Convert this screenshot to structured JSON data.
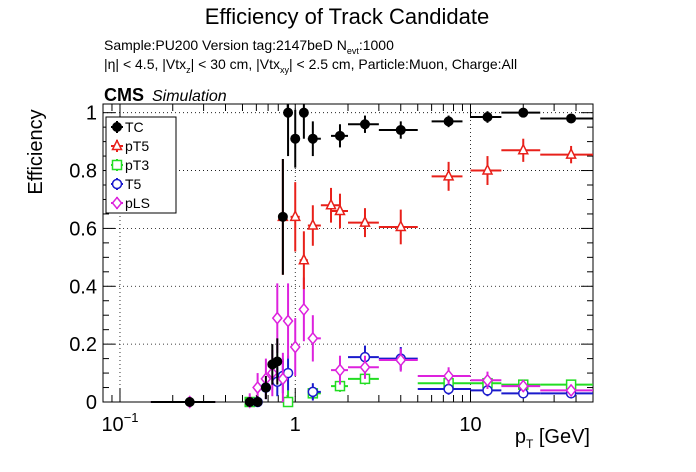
{
  "chart_data": {
    "type": "scatter",
    "title": "Efficiency of Track Candidate",
    "subtitle_sample": "Sample:PU200   Version tag:2147beD  N",
    "subtitle_nevt_sub": "evt",
    "subtitle_nevt_val": ":1000",
    "cuts_p1": "|η| < 4.5, |Vtx",
    "cuts_z": "z",
    "cuts_p2": "| < 30 cm, |Vtx",
    "cuts_xy": "xy",
    "cuts_p3": "| < 2.5 cm, Particle:Muon, Charge:All",
    "cms_label": "CMS",
    "simulation_label": "Simulation",
    "ylabel": "Efficiency",
    "xlabel_p": "p",
    "xlabel_sub": "T",
    "xlabel_unit": " [GeV]",
    "x_scale": "log",
    "xlim": [
      0.08,
      50
    ],
    "ylim": [
      0,
      1.03
    ],
    "grid": true,
    "legend_position": "top-left",
    "x_ticks": [
      {
        "value": 0.1,
        "base": "10",
        "exp": "−1"
      },
      {
        "value": 1,
        "label": "1"
      },
      {
        "value": 10,
        "label": "10"
      }
    ],
    "y_ticks": [
      {
        "value": 0,
        "label": "0"
      },
      {
        "value": 0.2,
        "label": "0.2"
      },
      {
        "value": 0.4,
        "label": "0.4"
      },
      {
        "value": 0.6,
        "label": "0.6"
      },
      {
        "value": 0.8,
        "label": "0.8"
      },
      {
        "value": 1,
        "label": "1"
      }
    ],
    "series": [
      {
        "name": "TC",
        "color": "#000000",
        "marker": "filled-circle",
        "points": [
          {
            "x": 0.25,
            "xlo": 0.15,
            "xhi": 0.35,
            "y": 0,
            "ey": 0
          },
          {
            "x": 0.55,
            "xlo": 0.52,
            "xhi": 0.58,
            "y": 0,
            "ey": 0
          },
          {
            "x": 0.61,
            "xlo": 0.58,
            "xhi": 0.65,
            "y": 0,
            "ey": 0.02
          },
          {
            "x": 0.68,
            "xlo": 0.65,
            "xhi": 0.72,
            "y": 0.05,
            "ey": 0.04
          },
          {
            "x": 0.74,
            "xlo": 0.72,
            "xhi": 0.77,
            "y": 0.13,
            "ey": 0.07
          },
          {
            "x": 0.79,
            "xlo": 0.77,
            "xhi": 0.82,
            "y": 0.14,
            "ey": 0.08
          },
          {
            "x": 0.85,
            "xlo": 0.82,
            "xhi": 0.88,
            "y": 0.64,
            "ey": 0.2
          },
          {
            "x": 0.91,
            "xlo": 0.88,
            "xhi": 0.94,
            "y": 1.0,
            "ey": 0.15
          },
          {
            "x": 1.0,
            "xlo": 0.94,
            "xhi": 1.06,
            "y": 0.91,
            "ey": 0.1
          },
          {
            "x": 1.12,
            "xlo": 1.06,
            "xhi": 1.18,
            "y": 1.0,
            "ey": 0.09
          },
          {
            "x": 1.26,
            "xlo": 1.18,
            "xhi": 1.4,
            "y": 0.91,
            "ey": 0.06
          },
          {
            "x": 1.8,
            "xlo": 1.6,
            "xhi": 2.0,
            "y": 0.92,
            "ey": 0.04
          },
          {
            "x": 2.5,
            "xlo": 2.0,
            "xhi": 3.0,
            "y": 0.96,
            "ey": 0.03
          },
          {
            "x": 4.0,
            "xlo": 3.0,
            "xhi": 5.0,
            "y": 0.94,
            "ey": 0.03
          },
          {
            "x": 7.5,
            "xlo": 6.0,
            "xhi": 9.0,
            "y": 0.97,
            "ey": 0.02
          },
          {
            "x": 12.5,
            "xlo": 10.0,
            "xhi": 15.0,
            "y": 0.985,
            "ey": 0.02
          },
          {
            "x": 20.0,
            "xlo": 15.0,
            "xhi": 25.0,
            "y": 1.0,
            "ey": 0.01
          },
          {
            "x": 37.5,
            "xlo": 25.0,
            "xhi": 50.0,
            "y": 0.98,
            "ey": 0.01
          }
        ]
      },
      {
        "name": "pT5",
        "color": "#e8201a",
        "marker": "open-triangle",
        "points": [
          {
            "x": 0.85,
            "xlo": 0.82,
            "xhi": 0.88,
            "y": 0.64,
            "ey": 0.2
          },
          {
            "x": 1.0,
            "xlo": 0.94,
            "xhi": 1.06,
            "y": 0.64,
            "ey": 0.12
          },
          {
            "x": 1.12,
            "xlo": 1.06,
            "xhi": 1.18,
            "y": 0.49,
            "ey": 0.1
          },
          {
            "x": 1.26,
            "xlo": 1.18,
            "xhi": 1.4,
            "y": 0.61,
            "ey": 0.07
          },
          {
            "x": 1.6,
            "xlo": 1.4,
            "xhi": 1.8,
            "y": 0.68,
            "ey": 0.06
          },
          {
            "x": 1.8,
            "xlo": 1.6,
            "xhi": 2.0,
            "y": 0.66,
            "ey": 0.06
          },
          {
            "x": 2.5,
            "xlo": 2.0,
            "xhi": 3.0,
            "y": 0.62,
            "ey": 0.05
          },
          {
            "x": 4.0,
            "xlo": 3.0,
            "xhi": 5.0,
            "y": 0.605,
            "ey": 0.06
          },
          {
            "x": 7.5,
            "xlo": 6.0,
            "xhi": 9.0,
            "y": 0.78,
            "ey": 0.05
          },
          {
            "x": 12.5,
            "xlo": 10.0,
            "xhi": 15.0,
            "y": 0.8,
            "ey": 0.05
          },
          {
            "x": 20.0,
            "xlo": 15.0,
            "xhi": 25.0,
            "y": 0.87,
            "ey": 0.04
          },
          {
            "x": 37.5,
            "xlo": 25.0,
            "xhi": 50.0,
            "y": 0.855,
            "ey": 0.03
          }
        ]
      },
      {
        "name": "pT3",
        "color": "#22dd22",
        "marker": "open-square",
        "points": [
          {
            "x": 0.55,
            "xlo": 0.52,
            "xhi": 0.58,
            "y": 0,
            "ey": 0
          },
          {
            "x": 0.91,
            "xlo": 0.88,
            "xhi": 0.94,
            "y": 0,
            "ey": 0.04
          },
          {
            "x": 1.26,
            "xlo": 1.18,
            "xhi": 1.4,
            "y": 0.03,
            "ey": 0.02
          },
          {
            "x": 1.8,
            "xlo": 1.6,
            "xhi": 2.0,
            "y": 0.055,
            "ey": 0.02
          },
          {
            "x": 2.5,
            "xlo": 2.0,
            "xhi": 3.0,
            "y": 0.08,
            "ey": 0.02
          },
          {
            "x": 7.5,
            "xlo": 5.0,
            "xhi": 10.0,
            "y": 0.065,
            "ey": 0.02
          },
          {
            "x": 12.5,
            "xlo": 10.0,
            "xhi": 15.0,
            "y": 0.065,
            "ey": 0.015
          },
          {
            "x": 20.0,
            "xlo": 15.0,
            "xhi": 25.0,
            "y": 0.06,
            "ey": 0.015
          },
          {
            "x": 37.5,
            "xlo": 25.0,
            "xhi": 50.0,
            "y": 0.06,
            "ey": 0.015
          }
        ]
      },
      {
        "name": "T5",
        "color": "#1a1acc",
        "marker": "open-circle",
        "points": [
          {
            "x": 0.61,
            "xlo": 0.58,
            "xhi": 0.65,
            "y": 0,
            "ey": 0
          },
          {
            "x": 0.68,
            "xlo": 0.65,
            "xhi": 0.72,
            "y": 0.05,
            "ey": 0.04
          },
          {
            "x": 0.79,
            "xlo": 0.77,
            "xhi": 0.82,
            "y": 0.07,
            "ey": 0.05
          },
          {
            "x": 0.85,
            "xlo": 0.82,
            "xhi": 0.88,
            "y": 0.09,
            "ey": 0.06
          },
          {
            "x": 0.91,
            "xlo": 0.88,
            "xhi": 0.94,
            "y": 0.1,
            "ey": 0.06
          },
          {
            "x": 1.26,
            "xlo": 1.18,
            "xhi": 1.4,
            "y": 0.035,
            "ey": 0.03
          },
          {
            "x": 2.5,
            "xlo": 2.0,
            "xhi": 3.0,
            "y": 0.155,
            "ey": 0.04
          },
          {
            "x": 4.0,
            "xlo": 3.0,
            "xhi": 5.0,
            "y": 0.15,
            "ey": 0.04
          },
          {
            "x": 7.5,
            "xlo": 5.0,
            "xhi": 10.0,
            "y": 0.045,
            "ey": 0.02
          },
          {
            "x": 12.5,
            "xlo": 10.0,
            "xhi": 15.0,
            "y": 0.04,
            "ey": 0.02
          },
          {
            "x": 20.0,
            "xlo": 15.0,
            "xhi": 25.0,
            "y": 0.03,
            "ey": 0.015
          },
          {
            "x": 37.5,
            "xlo": 25.0,
            "xhi": 50.0,
            "y": 0.03,
            "ey": 0.015
          }
        ]
      },
      {
        "name": "pLS",
        "color": "#dd22dd",
        "marker": "open-diamond",
        "points": [
          {
            "x": 0.25,
            "xlo": 0.15,
            "xhi": 0.35,
            "y": 0,
            "ey": 0
          },
          {
            "x": 0.55,
            "xlo": 0.52,
            "xhi": 0.58,
            "y": 0,
            "ey": 0.03
          },
          {
            "x": 0.61,
            "xlo": 0.58,
            "xhi": 0.65,
            "y": 0.05,
            "ey": 0.05
          },
          {
            "x": 0.68,
            "xlo": 0.65,
            "xhi": 0.72,
            "y": 0.08,
            "ey": 0.07
          },
          {
            "x": 0.74,
            "xlo": 0.72,
            "xhi": 0.77,
            "y": 0.1,
            "ey": 0.08
          },
          {
            "x": 0.79,
            "xlo": 0.77,
            "xhi": 0.82,
            "y": 0.29,
            "ey": 0.12
          },
          {
            "x": 0.85,
            "xlo": 0.82,
            "xhi": 0.88,
            "y": 0.08,
            "ey": 0.09
          },
          {
            "x": 0.91,
            "xlo": 0.88,
            "xhi": 0.94,
            "y": 0.28,
            "ey": 0.13
          },
          {
            "x": 1.0,
            "xlo": 0.94,
            "xhi": 1.06,
            "y": 0.19,
            "ey": 0.1
          },
          {
            "x": 1.12,
            "xlo": 1.06,
            "xhi": 1.18,
            "y": 0.32,
            "ey": 0.11
          },
          {
            "x": 1.26,
            "xlo": 1.18,
            "xhi": 1.4,
            "y": 0.22,
            "ey": 0.08
          },
          {
            "x": 1.8,
            "xlo": 1.6,
            "xhi": 2.0,
            "y": 0.11,
            "ey": 0.05
          },
          {
            "x": 2.5,
            "xlo": 2.0,
            "xhi": 3.0,
            "y": 0.12,
            "ey": 0.04
          },
          {
            "x": 4.0,
            "xlo": 3.0,
            "xhi": 5.0,
            "y": 0.145,
            "ey": 0.04
          },
          {
            "x": 7.5,
            "xlo": 5.0,
            "xhi": 10.0,
            "y": 0.09,
            "ey": 0.03
          },
          {
            "x": 12.5,
            "xlo": 10.0,
            "xhi": 15.0,
            "y": 0.075,
            "ey": 0.03
          },
          {
            "x": 20.0,
            "xlo": 15.0,
            "xhi": 25.0,
            "y": 0.055,
            "ey": 0.02
          },
          {
            "x": 37.5,
            "xlo": 25.0,
            "xhi": 50.0,
            "y": 0.04,
            "ey": 0.02
          }
        ]
      }
    ]
  }
}
